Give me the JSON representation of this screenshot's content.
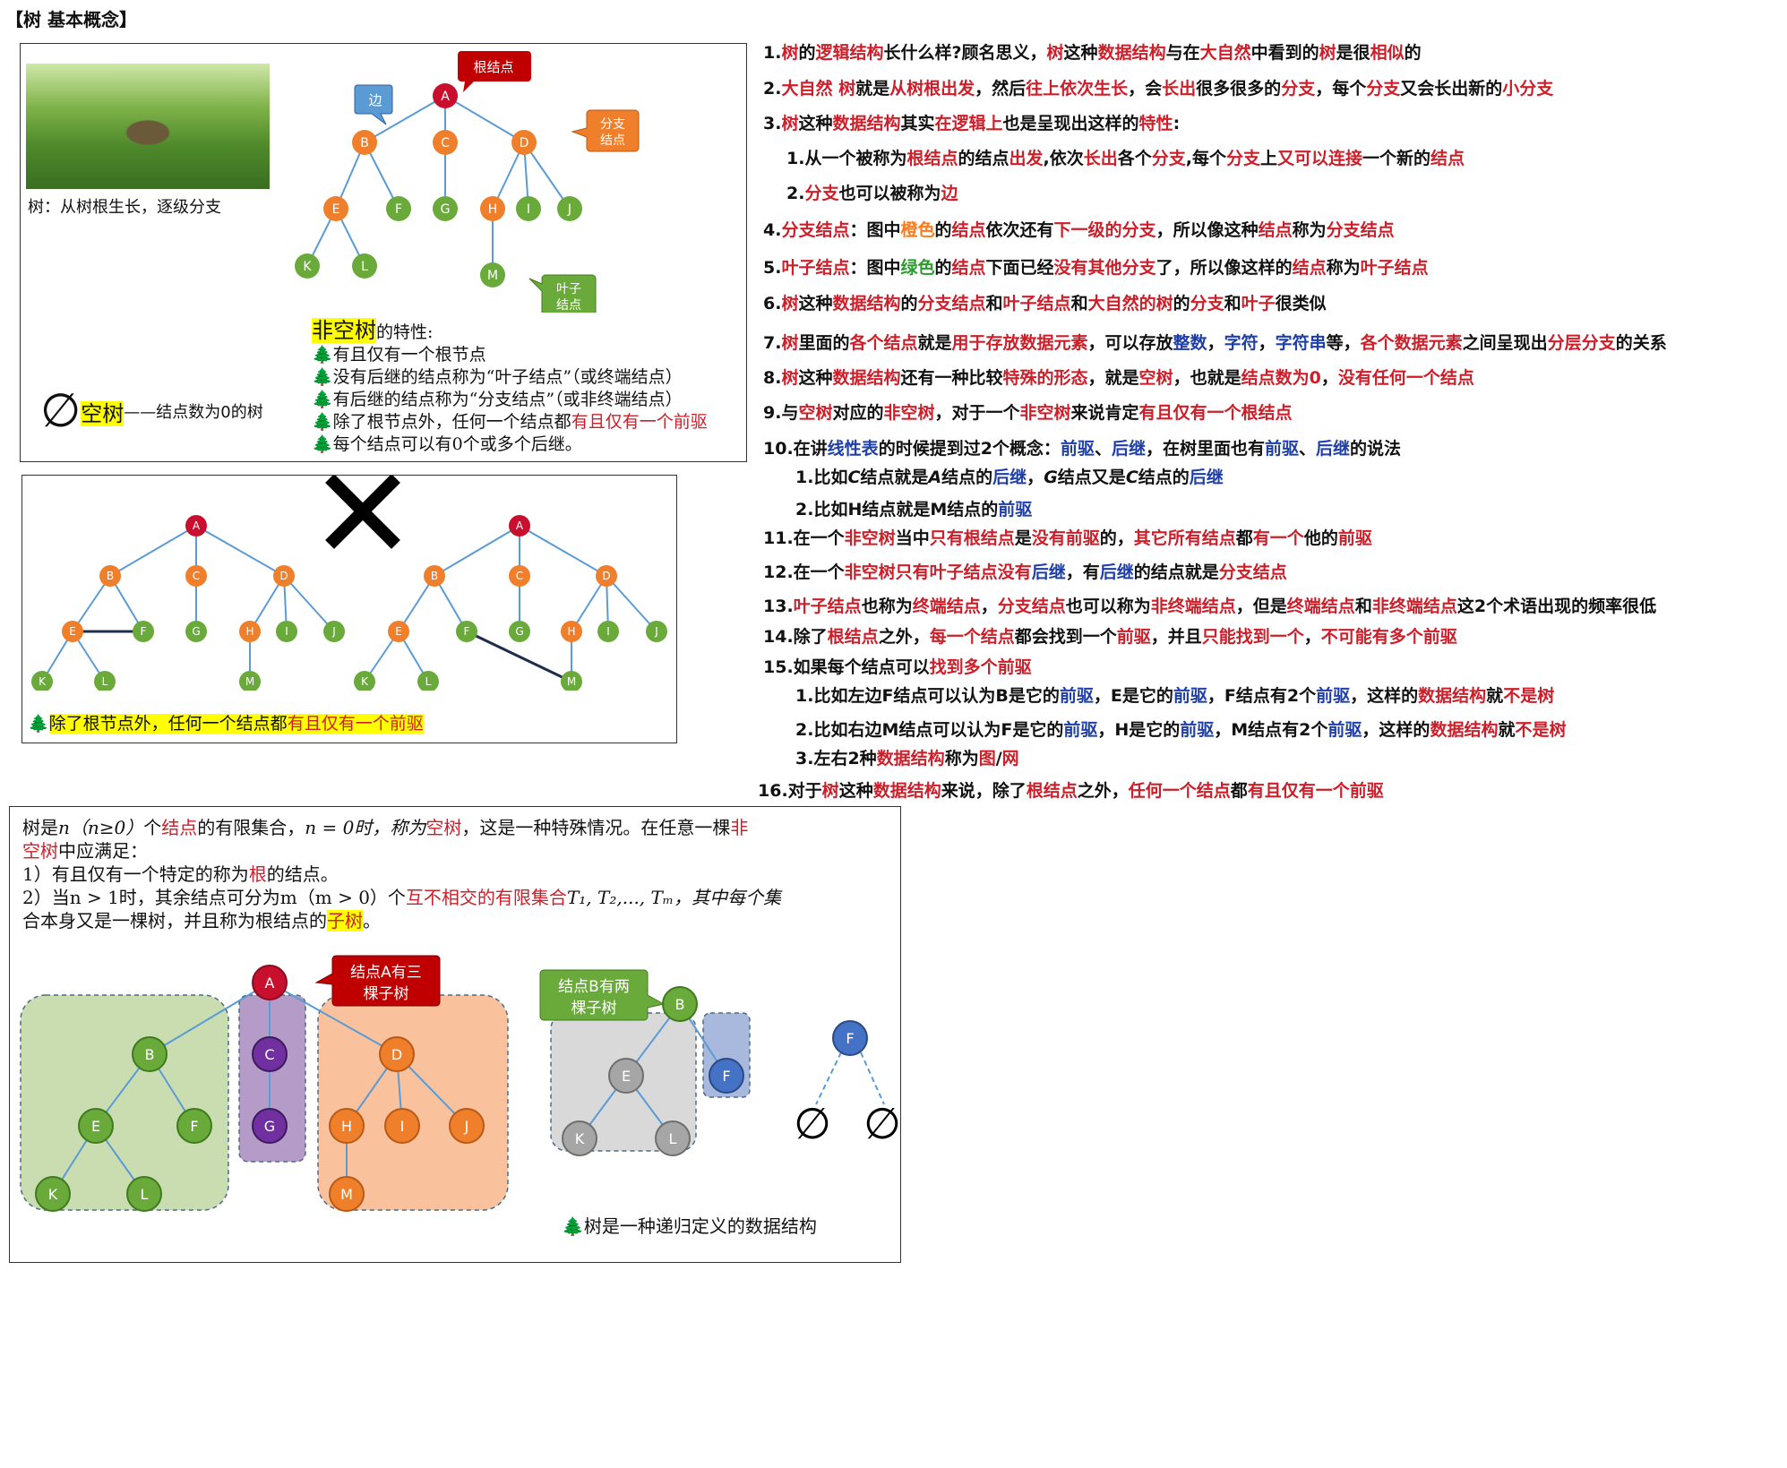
{
  "page_title": "【树 基本概念】",
  "panel1": {
    "photo_caption": "树：从树根生长，逐级分支",
    "callouts": {
      "root": "根结点",
      "edge": "边",
      "branch": "分支\n结点",
      "leaf": "叶子\n结点"
    },
    "nodes": [
      "A",
      "B",
      "C",
      "D",
      "E",
      "F",
      "G",
      "H",
      "I",
      "J",
      "K",
      "L",
      "M"
    ],
    "empty_symbol": "∅",
    "empty_tree_hl": "空树",
    "empty_tree_text": "——结点数为0的树",
    "nonempty_hl": "非空树",
    "nonempty_suffix": "的特性:",
    "properties": [
      "有且仅有一个根节点",
      "没有后继的结点称为“叶子结点”（或终端结点）",
      "有后继的结点称为“分支结点”（或非终端结点）",
      "每个结点可以有0个或多个后继。"
    ],
    "prop4_a": "除了根节点外，任何一个结点都",
    "prop4_b": "有且仅有一个前驱",
    "bullet": "🌲"
  },
  "panel2": {
    "cross": "✕",
    "caption_a": "除了根节点外，任何一个结点都",
    "caption_b": "有且仅有一个前驱"
  },
  "panel3": {
    "def1_a": "树是",
    "def1_n": "n（n≥0）",
    "def1_b": "个",
    "def1_node": "结点",
    "def1_c": "的有限集合，",
    "def1_d": "n = 0时，称为",
    "def1_empty": "空树",
    "def1_e": "，这是一种特殊情况。在任意一棵",
    "def1_non": "非",
    "def2_non": "空树",
    "def2_a": "中应满足：",
    "def3_a": "1）有且仅有一个特定的称为",
    "def3_root": "根",
    "def3_b": "的结点。",
    "def4_a": "2）当n > 1时，其余结点可分为m（m > 0）个",
    "def4_set": "互不相交的有限集合",
    "def4_b": "T₁, T₂,..., Tₘ，其中每个集",
    "def5_a": "合本身又是一棵树，并且称为根结点的",
    "def5_sub": "子树",
    "def5_b": "。",
    "callout_a": "结点A有三\n棵子树",
    "callout_b": "结点B有两\n棵子树",
    "recursive": "树是一种递归定义的数据结构",
    "empty_symbol": "∅"
  },
  "notes": [
    "1.树的逻辑结构长什么样?顾名思义，树这种数据结构与在大自然中看到的树是很相似的",
    "2.大自然 树就是从树根出发，然后往上依次生长，会长出很多很多的分支，每个分支又会长出新的小分支",
    "3.树这种数据结构其实在逻辑上也是呈现出这样的特性:",
    "1.从一个被称为根结点的结点出发,依次长出各个分支,每个分支上又可以连接一个新的结点",
    "2.分支也可以被称为边",
    "4.分支结点：图中橙色的结点依次还有下一级的分支，所以像这种结点称为分支结点",
    "5.叶子结点：图中绿色的结点下面已经没有其他分支了，所以像这样的结点称为叶子结点",
    "6.树这种数据结构的分支结点和叶子结点和大自然的树的分支和叶子很类似",
    "7.树里面的各个结点就是用于存放数据元素，可以存放整数，字符，字符串等，各个数据元素之间呈现出分层分支的关系",
    "8.树这种数据结构还有一种比较特殊的形态，就是空树，也就是结点数为0，没有任何一个结点",
    "9.与空树对应的非空树，对于一个非空树来说肯定有且仅有一个根结点",
    "10.在讲线性表的时候提到过2个概念：前驱、后继，在树里面也有前驱、后继的说法",
    "1.比如C结点就是A结点的后继，G结点又是C结点的后继",
    "2.比如H结点就是M结点的前驱",
    "11.在一个非空树当中只有根结点是没有前驱的，其它所有结点都有一个他的前驱",
    "12.在一个非空树只有叶子结点没有后继，有后继的结点就是分支结点",
    "13.叶子结点也称为终端结点，分支结点也可以称为非终端结点，但是终端结点和非终端结点这2个术语出现的频率很低",
    "14.除了根结点之外，每一个结点都会找到一个前驱，并且只能找到一个，不可能有多个前驱",
    "15.如果每个结点可以找到多个前驱",
    "1.比如左边F结点可以认为B是它的前驱，E是它的前驱，F结点有2个前驱，这样的数据结构就不是树",
    "2.比如右边M结点可以认为F是它的前驱，H是它的前驱，M结点有2个前驱，这样的数据结构就不是树",
    "3.左右2种数据结构称为图/网",
    "16.对于树这种数据结构来说，除了根结点之外，任何一个结点都有且仅有一个前驱"
  ],
  "colors": {
    "root": "#c8102e",
    "branch": "#f07f2b",
    "leaf": "#6aaa3a",
    "edge": "#5b9bd5",
    "purple": "#7030a0",
    "blueNode": "#4472c4",
    "grayNode": "#a6a6a6"
  }
}
